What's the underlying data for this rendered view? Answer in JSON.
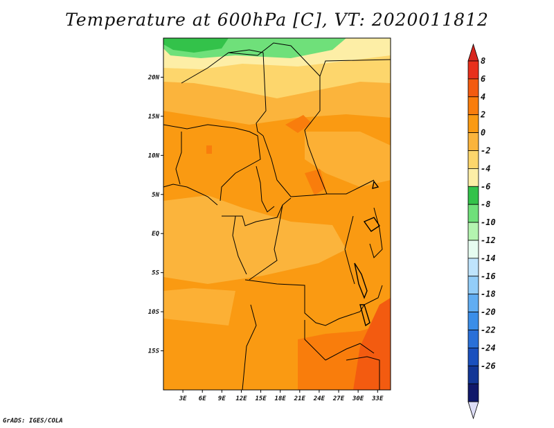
{
  "title": "Temperature at 600hPa [C], VT: 2020011812",
  "credit": "GrADS: IGES/COLA",
  "map": {
    "lon_range": [
      0,
      35
    ],
    "lat_range": [
      -20,
      25
    ],
    "lat_labels": [
      {
        "lat": 20,
        "text": "20N"
      },
      {
        "lat": 15,
        "text": "15N"
      },
      {
        "lat": 10,
        "text": "10N"
      },
      {
        "lat": 5,
        "text": "5N"
      },
      {
        "lat": 0,
        "text": "EQ"
      },
      {
        "lat": -5,
        "text": "5S"
      },
      {
        "lat": -10,
        "text": "10S"
      },
      {
        "lat": -15,
        "text": "15S"
      }
    ],
    "lon_labels": [
      {
        "lon": 3,
        "text": "3E"
      },
      {
        "lon": 6,
        "text": "6E"
      },
      {
        "lon": 9,
        "text": "9E"
      },
      {
        "lon": 12,
        "text": "12E"
      },
      {
        "lon": 15,
        "text": "15E"
      },
      {
        "lon": 18,
        "text": "18E"
      },
      {
        "lon": 21,
        "text": "21E"
      },
      {
        "lon": 24,
        "text": "24E"
      },
      {
        "lon": 27,
        "text": "27E"
      },
      {
        "lon": 30,
        "text": "30E"
      },
      {
        "lon": 33,
        "text": "33E"
      }
    ]
  },
  "colorbar": {
    "labels": [
      "8",
      "6",
      "4",
      "2",
      "0",
      "-2",
      "-4",
      "-6",
      "-8",
      "-10",
      "-12",
      "-14",
      "-16",
      "-18",
      "-20",
      "-22",
      "-24",
      "-26"
    ],
    "colors": [
      "#e8301c",
      "#f35b10",
      "#f97d0c",
      "#fa9a12",
      "#fbb43c",
      "#fdd66c",
      "#fdeea6",
      "#33c24a",
      "#6fe07a",
      "#b4f4b0",
      "#e6fcf0",
      "#bfe4fc",
      "#93cdf8",
      "#61adf2",
      "#3b8ee8",
      "#2a70d8",
      "#1a50be",
      "#123696",
      "#10186a"
    ],
    "top_color": "#d7261e",
    "bottom_color": "#ddddf6"
  }
}
